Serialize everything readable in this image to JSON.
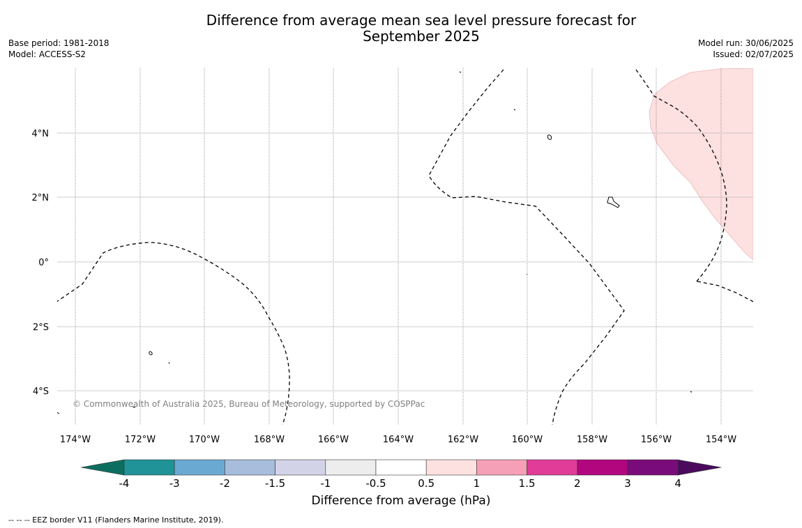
{
  "title_line1": "Difference from average mean sea level pressure forecast for",
  "title_line2": "September 2025",
  "meta_left": {
    "base_period": "Base period: 1981-2018",
    "model": "Model: ACCESS-S2"
  },
  "meta_right": {
    "model_run": "Model run: 30/06/2025",
    "issued": "Issued: 02/07/2025"
  },
  "copyright": "© Commonwealth of Australia 2025, Bureau of Meteorology, supported by COSPPac",
  "footnote": "--  --  -- EEZ border V11 (Flanders Marine Institute, 2019).",
  "map": {
    "lon_ticks": [
      "174°W",
      "172°W",
      "170°W",
      "168°W",
      "166°W",
      "164°W",
      "162°W",
      "160°W",
      "158°W",
      "156°W",
      "154°W"
    ],
    "lat_ticks": [
      "4°N",
      "2°N",
      "0°",
      "2°S",
      "4°S"
    ]
  },
  "colorbar": {
    "label": "Difference from average (hPa)",
    "ticks": [
      "-4",
      "-3",
      "-2",
      "-1.5",
      "-1",
      "-0.5",
      "0.5",
      "1",
      "1.5",
      "2",
      "3",
      "4"
    ],
    "colors": {
      "lower_extend": "#0d6e5f",
      "bins": [
        "#1f9397",
        "#6aa9d2",
        "#a8bddc",
        "#d3d3e8",
        "#ededed",
        "#ffffff",
        "#fde0e0",
        "#f6a0b8",
        "#e03c98",
        "#b1067e",
        "#7a0b7a"
      ],
      "upper_extend": "#4b0a5e"
    }
  }
}
